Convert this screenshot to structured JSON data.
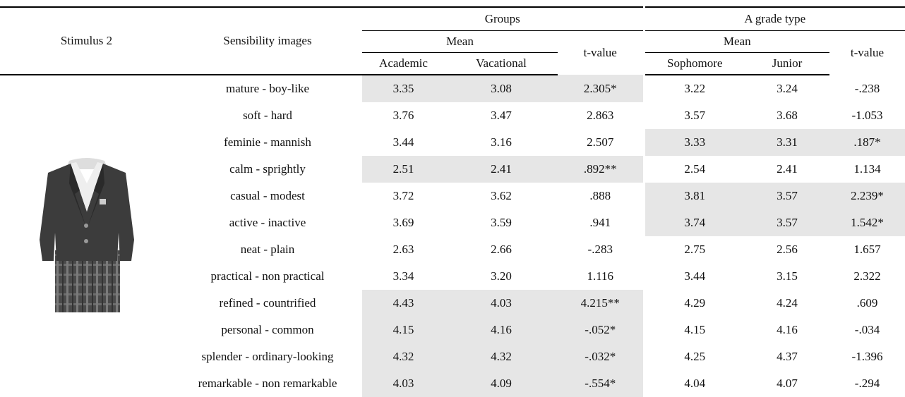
{
  "header": {
    "stimulus": "Stimulus 2",
    "sensibility": "Sensibility images",
    "groups": {
      "title": "Groups",
      "mean": "Mean",
      "t_value": "t-value",
      "columns": [
        "Academic",
        "Vacational"
      ]
    },
    "grade": {
      "title": "A grade type",
      "mean": "Mean",
      "t_value": "t-value",
      "columns": [
        "Sophomore",
        "Junior"
      ]
    }
  },
  "rows": [
    [
      "mature - boy-like",
      "3.35",
      "3.08",
      "2.305*",
      "3.22",
      "3.24",
      "-.238"
    ],
    [
      "soft - hard",
      "3.76",
      "3.47",
      "2.863",
      "3.57",
      "3.68",
      "-1.053"
    ],
    [
      "feminie - mannish",
      "3.44",
      "3.16",
      "2.507",
      "3.33",
      "3.31",
      ".187*"
    ],
    [
      "calm - sprightly",
      "2.51",
      "2.41",
      ".892**",
      "2.54",
      "2.41",
      "1.134"
    ],
    [
      "casual - modest",
      "3.72",
      "3.62",
      ".888",
      "3.81",
      "3.57",
      "2.239*"
    ],
    [
      "active - inactive",
      "3.69",
      "3.59",
      ".941",
      "3.74",
      "3.57",
      "1.542*"
    ],
    [
      "neat - plain",
      "2.63",
      "2.66",
      "-.283",
      "2.75",
      "2.56",
      "1.657"
    ],
    [
      "practical - non practical",
      "3.34",
      "3.20",
      "1.116",
      "3.44",
      "3.15",
      "2.322"
    ],
    [
      "refined - countrified",
      "4.43",
      "4.03",
      "4.215**",
      "4.29",
      "4.24",
      ".609"
    ],
    [
      "personal - common",
      "4.15",
      "4.16",
      "-.052*",
      "4.15",
      "4.16",
      "-.034"
    ],
    [
      "splender - ordinary-looking",
      "4.32",
      "4.32",
      "-.032*",
      "4.25",
      "4.37",
      "-1.396"
    ],
    [
      "remarkable - non remarkable",
      "4.03",
      "4.09",
      "-.554*",
      "4.04",
      "4.07",
      "-.294"
    ]
  ]
}
